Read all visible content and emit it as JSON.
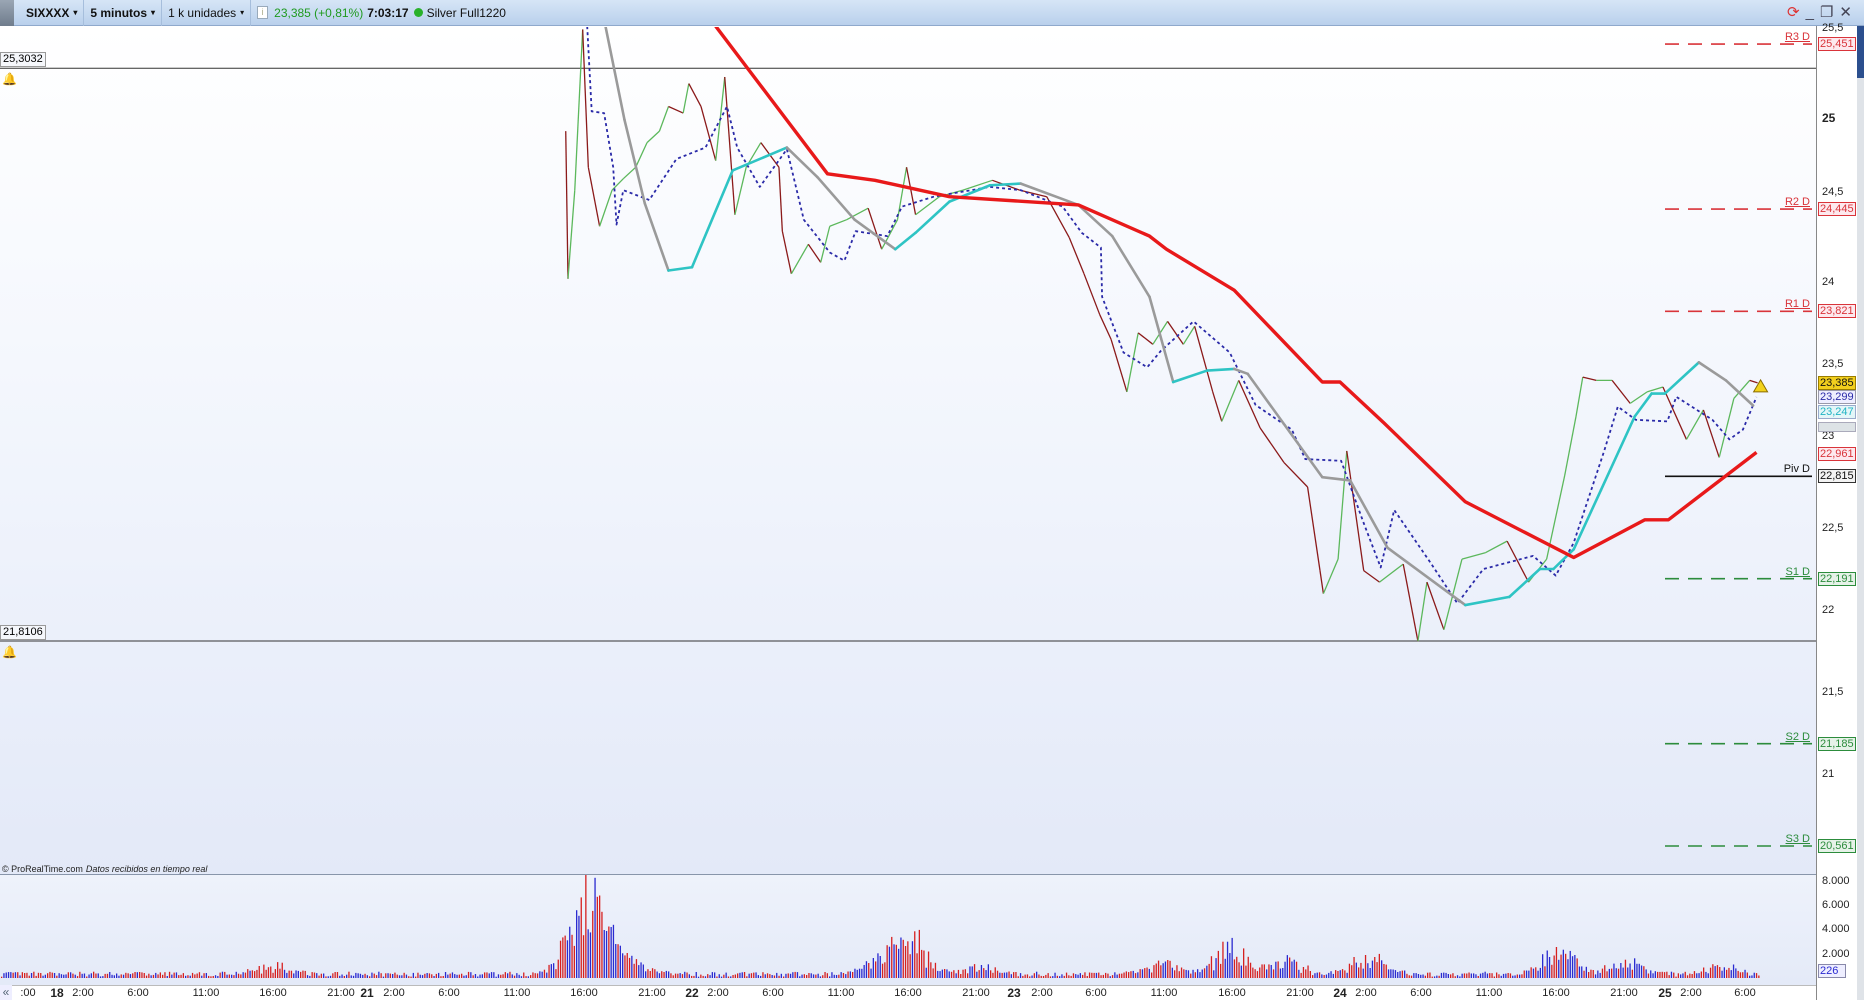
{
  "toolbar": {
    "symbol": "SIXXXX",
    "timeframe": "5 minutos",
    "units": "1 k unidades",
    "last_price": "23,385 (+0,81%)",
    "time": "7:03:17",
    "account": "Silver Full1220",
    "caret": "▾",
    "info": "i"
  },
  "window_controls": {
    "refresh": "⟳",
    "minimize": "_",
    "restore": "❐",
    "close": "✕"
  },
  "alerts": [
    {
      "label": "25,3032",
      "price": 25.3032
    },
    {
      "label": "21,8106",
      "price": 21.8106
    }
  ],
  "copyright": {
    "brand": "© ProRealTime.com",
    "note": "Datos recibidos en tiempo real"
  },
  "colors": {
    "up": "#5cb85c",
    "down": "#8b1a1a",
    "ma_slow": "#e8191a",
    "ma_up": "#2ec4c4",
    "ma_down": "#9a9a9a",
    "signal": "#2a2aa8",
    "resistance": "#d9343a",
    "support": "#2c8c3c",
    "pivot": "#111111",
    "vol_a": "#d62020",
    "vol_b": "#2a2ad0"
  },
  "price_axis": {
    "ticks": [
      {
        "label": "25,5",
        "price": 25.5
      },
      {
        "label": "25",
        "price": 25,
        "bold": true
      },
      {
        "label": "24,5",
        "price": 24.5
      },
      {
        "label": "24",
        "price": 24
      },
      {
        "label": "23,5",
        "price": 23.5
      },
      {
        "label": "23",
        "price": 23
      },
      {
        "label": "22,5",
        "price": 22.5
      },
      {
        "label": "22",
        "price": 22
      },
      {
        "label": "21,5",
        "price": 21.5
      },
      {
        "label": "21",
        "price": 21
      }
    ],
    "boxes": [
      {
        "label": "25,451",
        "price": 25.451,
        "kind": "r"
      },
      {
        "label": "24,445",
        "price": 24.445,
        "kind": "r"
      },
      {
        "label": "23,821",
        "price": 23.821,
        "kind": "r"
      },
      {
        "label": "23,299",
        "price": 23.299,
        "kind": "sig"
      },
      {
        "label": "23,247",
        "price": 23.247,
        "kind": "ma"
      },
      {
        "label": "23,385",
        "price": 23.385,
        "kind": "last"
      },
      {
        "label": "22,961",
        "price": 22.961,
        "kind": "r"
      },
      {
        "label": "22,815",
        "price": 22.815,
        "kind": "piv"
      },
      {
        "label": "22,191",
        "price": 22.191,
        "kind": "s"
      },
      {
        "label": "21,185",
        "price": 21.185,
        "kind": "s"
      },
      {
        "label": "20,561",
        "price": 20.561,
        "kind": "s"
      }
    ]
  },
  "pivots": [
    {
      "label": "R3 D",
      "price": 25.451,
      "kind": "r"
    },
    {
      "label": "R2 D",
      "price": 24.445,
      "kind": "r"
    },
    {
      "label": "R1 D",
      "price": 23.821,
      "kind": "r"
    },
    {
      "label": "Piv D",
      "price": 22.815,
      "kind": "piv"
    },
    {
      "label": "S1 D",
      "price": 22.191,
      "kind": "s"
    },
    {
      "label": "S2 D",
      "price": 21.185,
      "kind": "s"
    },
    {
      "label": "S3 D",
      "price": 20.561,
      "kind": "s"
    }
  ],
  "volume_axis": {
    "ticks": [
      {
        "label": "8.000",
        "value": 8000
      },
      {
        "label": "6.000",
        "value": 6000
      },
      {
        "label": "4.000",
        "value": 4000
      },
      {
        "label": "2.000",
        "value": 2000
      }
    ],
    "current": "226"
  },
  "time_axis": {
    "scroll": "«",
    "labels": [
      ":00",
      "18",
      "2:00",
      "6:00",
      "11:00",
      "16:00",
      "21:00",
      "21",
      "2:00",
      "6:00",
      "11:00",
      "16:00",
      "21:00",
      "22",
      "2:00",
      "6:00",
      "11:00",
      "16:00",
      "21:00",
      "23",
      "2:00",
      "6:00",
      "11:00",
      "16:00",
      "21:00",
      "24",
      "2:00",
      "6:00",
      "11:00",
      "16:00",
      "21:00",
      "25",
      "2:00",
      "6:00"
    ]
  },
  "chart_data": {
    "type": "line",
    "ylim": [
      20.4,
      25.6
    ],
    "price": [
      [
        "21 14:40",
        24.92
      ],
      [
        "21 14:50",
        24.02
      ],
      [
        "21 15:20",
        24.56
      ],
      [
        "21 15:55",
        25.54
      ],
      [
        "21 16:20",
        24.7
      ],
      [
        "21 17:10",
        24.34
      ],
      [
        "21 18:05",
        24.56
      ],
      [
        "21 18:55",
        24.63
      ],
      [
        "21 19:50",
        24.7
      ],
      [
        "21 20:40",
        24.85
      ],
      [
        "21 21:35",
        24.92
      ],
      [
        "21 22:15",
        25.07
      ],
      [
        "21 23:20",
        25.03
      ],
      [
        "21 23:45",
        25.21
      ],
      [
        "22 00:40",
        25.07
      ],
      [
        "22 01:45",
        24.74
      ],
      [
        "22 02:25",
        25.25
      ],
      [
        "22 03:10",
        24.41
      ],
      [
        "22 04:00",
        24.7
      ],
      [
        "22 05:05",
        24.85
      ],
      [
        "22 06:25",
        24.7
      ],
      [
        "22 06:40",
        24.31
      ],
      [
        "22 07:20",
        24.05
      ],
      [
        "22 08:35",
        24.23
      ],
      [
        "22 09:30",
        24.12
      ],
      [
        "22 10:10",
        24.34
      ],
      [
        "22 11:25",
        24.38
      ],
      [
        "22 13:00",
        24.45
      ],
      [
        "22 14:00",
        24.2
      ],
      [
        "22 15:10",
        24.38
      ],
      [
        "22 15:50",
        24.7
      ],
      [
        "22 16:30",
        24.41
      ],
      [
        "22 18:15",
        24.52
      ],
      [
        "22 20:00",
        24.56
      ],
      [
        "22 22:10",
        24.62
      ],
      [
        "23 00:25",
        24.56
      ],
      [
        "23 02:25",
        24.52
      ],
      [
        "23 04:05",
        24.27
      ],
      [
        "23 05:10",
        24.05
      ],
      [
        "23 06:20",
        23.8
      ],
      [
        "23 07:10",
        23.65
      ],
      [
        "23 08:20",
        23.33
      ],
      [
        "23 09:10",
        23.69
      ],
      [
        "23 10:15",
        23.62
      ],
      [
        "23 11:20",
        23.76
      ],
      [
        "23 12:30",
        23.62
      ],
      [
        "23 13:20",
        23.73
      ],
      [
        "23 14:40",
        23.33
      ],
      [
        "23 15:20",
        23.15
      ],
      [
        "23 16:35",
        23.4
      ],
      [
        "23 18:10",
        23.11
      ],
      [
        "23 19:55",
        22.9
      ],
      [
        "23 21:40",
        22.75
      ],
      [
        "23 22:35",
        22.24
      ],
      [
        "23 22:50",
        22.1
      ],
      [
        "23 23:55",
        22.31
      ],
      [
        "24 00:30",
        22.97
      ],
      [
        "24 01:45",
        22.24
      ],
      [
        "24 02:55",
        22.17
      ],
      [
        "24 04:40",
        22.28
      ],
      [
        "24 05:45",
        21.81
      ],
      [
        "24 06:25",
        22.17
      ],
      [
        "24 07:40",
        21.88
      ],
      [
        "24 09:00",
        22.31
      ],
      [
        "24 10:45",
        22.35
      ],
      [
        "24 12:20",
        22.42
      ],
      [
        "24 13:55",
        22.17
      ],
      [
        "24 15:15",
        22.31
      ],
      [
        "24 16:35",
        22.82
      ],
      [
        "24 17:25",
        23.18
      ],
      [
        "24 17:55",
        23.42
      ],
      [
        "24 18:55",
        23.4
      ],
      [
        "24 20:05",
        23.4
      ],
      [
        "24 21:25",
        23.26
      ],
      [
        "24 22:40",
        23.33
      ],
      [
        "24 23:50",
        23.36
      ],
      [
        "25 01:35",
        23.04
      ],
      [
        "25 02:50",
        23.22
      ],
      [
        "25 04:00",
        22.93
      ],
      [
        "25 05:05",
        23.29
      ],
      [
        "25 06:15",
        23.4
      ],
      [
        "25 06:50",
        23.385
      ]
    ],
    "ma_fast": [
      [
        "21 17:30",
        25.6
      ],
      [
        "21 19:00",
        24.99
      ],
      [
        "21 20:30",
        24.48
      ],
      [
        "21 22:15",
        24.07
      ],
      [
        "22 00:00",
        24.09
      ],
      [
        "22 03:00",
        24.68
      ],
      [
        "22 07:00",
        24.82
      ],
      [
        "22 09:15",
        24.64
      ],
      [
        "22 12:00",
        24.38
      ],
      [
        "22 15:00",
        24.2
      ],
      [
        "22 16:30",
        24.3
      ],
      [
        "22 19:00",
        24.49
      ],
      [
        "22 22:00",
        24.59
      ],
      [
        "23 00:30",
        24.6
      ],
      [
        "23 04:45",
        24.47
      ],
      [
        "23 07:15",
        24.28
      ],
      [
        "23 10:00",
        23.91
      ],
      [
        "23 11:45",
        23.39
      ],
      [
        "23 14:15",
        23.46
      ],
      [
        "23 16:15",
        23.47
      ],
      [
        "23 17:15",
        23.44
      ],
      [
        "23 22:45",
        22.81
      ],
      [
        "24 00:45",
        22.79
      ],
      [
        "24 03:30",
        22.38
      ],
      [
        "24 09:15",
        22.03
      ],
      [
        "24 12:30",
        22.08
      ],
      [
        "24 14:45",
        22.25
      ],
      [
        "24 15:45",
        22.25
      ],
      [
        "24 17:15",
        22.37
      ],
      [
        "24 19:15",
        22.73
      ],
      [
        "24 21:45",
        23.18
      ],
      [
        "24 23:00",
        23.32
      ],
      [
        "25 00:00",
        23.32
      ],
      [
        "25 02:30",
        23.51
      ],
      [
        "25 04:30",
        23.4
      ],
      [
        "25 06:30",
        23.247
      ]
    ],
    "ma_slow": [
      [
        "22 01:45",
        25.56
      ],
      [
        "22 10:00",
        24.66
      ],
      [
        "22 13:30",
        24.62
      ],
      [
        "22 19:00",
        24.52
      ],
      [
        "23 04:45",
        24.47
      ],
      [
        "23 10:00",
        24.28
      ],
      [
        "23 11:15",
        24.2
      ],
      [
        "23 16:15",
        23.95
      ],
      [
        "23 22:45",
        23.39
      ],
      [
        "24 00:00",
        23.39
      ],
      [
        "24 03:15",
        23.14
      ],
      [
        "24 09:15",
        22.66
      ],
      [
        "24 17:15",
        22.32
      ],
      [
        "24 22:30",
        22.55
      ],
      [
        "25 00:15",
        22.55
      ],
      [
        "25 06:45",
        22.961
      ]
    ],
    "signal": [
      [
        "21 16:15",
        25.56
      ],
      [
        "21 16:35",
        25.04
      ],
      [
        "21 17:30",
        25.03
      ],
      [
        "21 18:10",
        24.7
      ],
      [
        "21 18:25",
        24.35
      ],
      [
        "21 18:55",
        24.56
      ],
      [
        "21 20:50",
        24.5
      ],
      [
        "21 22:50",
        24.75
      ],
      [
        "22 01:00",
        24.82
      ],
      [
        "22 02:35",
        25.07
      ],
      [
        "22 03:20",
        24.82
      ],
      [
        "22 05:00",
        24.58
      ],
      [
        "22 07:00",
        24.81
      ],
      [
        "22 08:15",
        24.38
      ],
      [
        "22 10:10",
        24.18
      ],
      [
        "22 11:15",
        24.13
      ],
      [
        "22 12:05",
        24.31
      ],
      [
        "22 14:25",
        24.28
      ],
      [
        "22 15:30",
        24.46
      ],
      [
        "22 17:50",
        24.52
      ],
      [
        "22 22:00",
        24.58
      ],
      [
        "23 00:30",
        24.56
      ],
      [
        "23 03:35",
        24.46
      ],
      [
        "23 05:00",
        24.3
      ],
      [
        "23 06:25",
        24.21
      ],
      [
        "23 06:30",
        23.91
      ],
      [
        "23 08:05",
        23.57
      ],
      [
        "23 09:50",
        23.48
      ],
      [
        "23 10:50",
        23.58
      ],
      [
        "23 13:15",
        23.76
      ],
      [
        "23 15:55",
        23.57
      ],
      [
        "23 17:50",
        23.25
      ],
      [
        "23 20:30",
        23.1
      ],
      [
        "23 21:30",
        22.92
      ],
      [
        "24 00:05",
        22.91
      ],
      [
        "24 01:45",
        22.53
      ],
      [
        "24 03:00",
        22.26
      ],
      [
        "24 04:00",
        22.61
      ],
      [
        "24 06:40",
        22.29
      ],
      [
        "24 08:40",
        22.04
      ],
      [
        "24 10:35",
        22.25
      ],
      [
        "24 14:15",
        22.33
      ],
      [
        "24 15:55",
        22.21
      ],
      [
        "24 17:15",
        22.41
      ],
      [
        "24 19:30",
        22.97
      ],
      [
        "24 20:30",
        23.24
      ],
      [
        "24 21:50",
        23.16
      ],
      [
        "25 00:10",
        23.15
      ],
      [
        "25 00:50",
        23.3
      ],
      [
        "25 03:30",
        23.16
      ],
      [
        "25 04:45",
        23.04
      ],
      [
        "25 05:45",
        23.1
      ],
      [
        "25 06:45",
        23.299
      ]
    ],
    "volume_peaks": [
      [
        "18 16:00",
        900
      ],
      [
        "21 16:00",
        7600
      ],
      [
        "21 17:30",
        3300
      ],
      [
        "21 20:00",
        1200
      ],
      [
        "22 14:00",
        1500
      ],
      [
        "22 16:00",
        3800
      ],
      [
        "22 21:00",
        900
      ],
      [
        "23 11:00",
        1200
      ],
      [
        "23 16:00",
        2700
      ],
      [
        "23 20:00",
        1400
      ],
      [
        "24 02:00",
        1700
      ],
      [
        "24 16:00",
        2700
      ],
      [
        "24 21:00",
        1500
      ],
      [
        "25 04:00",
        800
      ]
    ],
    "volume_base": 350
  }
}
